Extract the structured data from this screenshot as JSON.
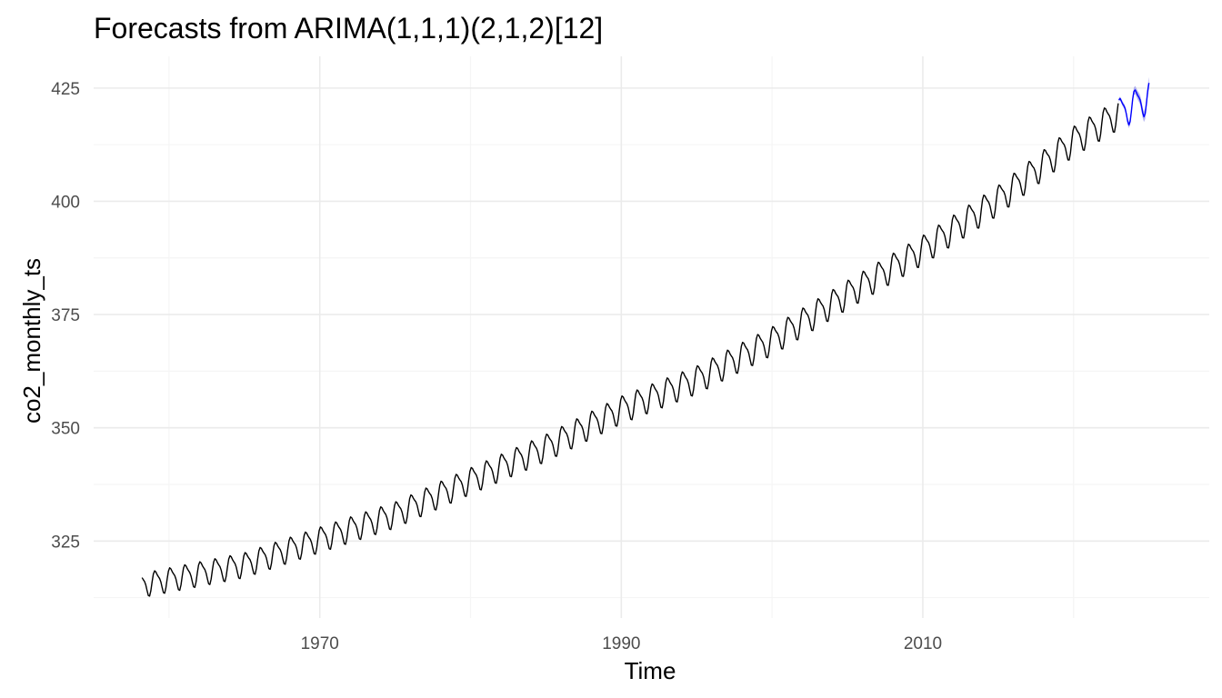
{
  "chart_data": {
    "type": "line",
    "title": "Forecasts from ARIMA(1,1,1)(2,1,2)[12]",
    "xlabel": "Time",
    "ylabel": "co2_monthly_ts",
    "xlim": [
      1955,
      2029
    ],
    "ylim": [
      308,
      432
    ],
    "x_ticks": [
      1970,
      1990,
      2010
    ],
    "y_ticks": [
      325,
      350,
      375,
      400,
      425
    ],
    "grid": true,
    "legend": "none",
    "colors": {
      "observed": "#000000",
      "forecast": "#0000ff",
      "interval": "#aaaaee",
      "grid_major": "#ebebeb",
      "grid_minor": "#f5f5f5"
    },
    "series": [
      {
        "role": "observed",
        "start": 1958.21,
        "end": 2023.0,
        "trend": [
          [
            1958,
            315.3
          ],
          [
            1965,
            319.9
          ],
          [
            1970,
            325.5
          ],
          [
            1975,
            331.0
          ],
          [
            1980,
            338.5
          ],
          [
            1985,
            345.8
          ],
          [
            1990,
            354.2
          ],
          [
            1995,
            360.8
          ],
          [
            2000,
            369.4
          ],
          [
            2005,
            379.6
          ],
          [
            2010,
            389.5
          ],
          [
            2015,
            400.5
          ],
          [
            2020,
            413.5
          ],
          [
            2023,
            419.5
          ]
        ],
        "seasonal_amplitude": [
          [
            1958,
            2.8
          ],
          [
            1990,
            3.2
          ],
          [
            2023,
            3.5
          ]
        ]
      },
      {
        "role": "forecast",
        "start": 2023.0,
        "end": 2025.0,
        "trend": [
          [
            2023,
            419.5
          ],
          [
            2025,
            423.2
          ]
        ],
        "seasonal_amplitude": [
          [
            2023,
            3.6
          ],
          [
            2025,
            3.7
          ]
        ],
        "interval_halfwidth": [
          [
            2023,
            0.4
          ],
          [
            2025,
            1.3
          ]
        ]
      }
    ]
  }
}
